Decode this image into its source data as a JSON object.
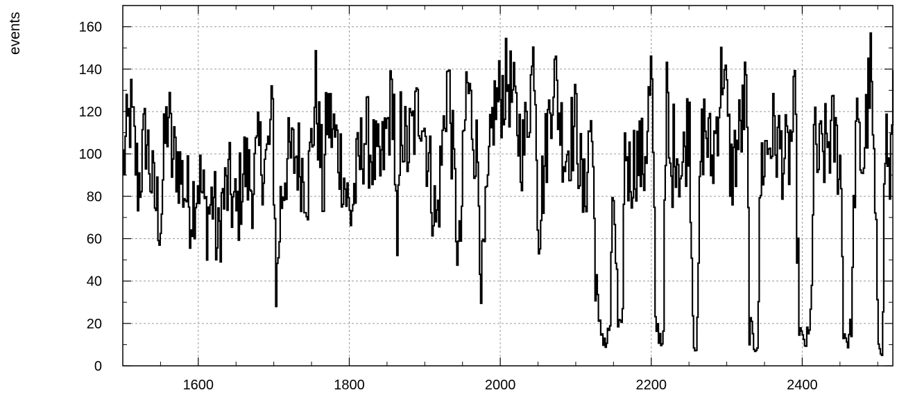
{
  "chart_data": {
    "type": "line",
    "title": "",
    "xlabel": "",
    "ylabel": "events",
    "xlim": [
      1500,
      2520
    ],
    "ylim": [
      0,
      170
    ],
    "x_ticks": [
      1600,
      1800,
      2000,
      2200,
      2400
    ],
    "y_ticks": [
      0,
      20,
      40,
      60,
      80,
      100,
      120,
      140,
      160
    ],
    "grid": true,
    "line_color": "#000000",
    "series": [
      {
        "x": [
          1500,
          1510,
          1520,
          1530,
          1540,
          1550,
          1555,
          1560,
          1565,
          1570,
          1580,
          1590,
          1600,
          1610,
          1620,
          1625,
          1630,
          1640,
          1650,
          1660,
          1670,
          1680,
          1690,
          1698,
          1703,
          1708,
          1715,
          1730,
          1745,
          1755,
          1765,
          1770,
          1790,
          1800,
          1820,
          1840,
          1858,
          1863,
          1868,
          1875,
          1895,
          1915,
          1930,
          1945,
          1955,
          1970,
          1975,
          1990,
          2010,
          2030,
          2045,
          2050,
          2070,
          2085,
          2100,
          2110,
          2120,
          2125,
          2130,
          2135,
          2140,
          2145,
          2150,
          2155,
          2160,
          2165,
          2170,
          2180,
          2190,
          2200,
          2205,
          2210,
          2215,
          2220,
          2225,
          2230,
          2240,
          2250,
          2255,
          2260,
          2265,
          2270,
          2280,
          2295,
          2305,
          2320,
          2325,
          2330,
          2335,
          2340,
          2345,
          2350,
          2360,
          2380,
          2390,
          2395,
          2400,
          2405,
          2410,
          2415,
          2420,
          2440,
          2450,
          2455,
          2460,
          2465,
          2470,
          2480,
          2490,
          2495,
          2500,
          2505,
          2510,
          2515,
          2520
        ],
        "values": [
          95,
          120,
          85,
          110,
          80,
          70,
          105,
          120,
          95,
          100,
          85,
          75,
          90,
          70,
          80,
          52,
          75,
          85,
          70,
          95,
          85,
          100,
          95,
          118,
          32,
          75,
          95,
          100,
          85,
          130,
          80,
          120,
          95,
          70,
          110,
          90,
          130,
          42,
          120,
          100,
          125,
          65,
          140,
          45,
          135,
          95,
          35,
          120,
          135,
          100,
          150,
          65,
          140,
          100,
          115,
          75,
          120,
          55,
          18,
          15,
          10,
          20,
          85,
          18,
          15,
          110,
          90,
          100,
          95,
          140,
          20,
          15,
          10,
          130,
          80,
          110,
          90,
          120,
          15,
          8,
          100,
          115,
          95,
          145,
          90,
          115,
          130,
          20,
          10,
          12,
          95,
          100,
          110,
          95,
          120,
          20,
          10,
          12,
          15,
          105,
          95,
          110,
          95,
          15,
          12,
          20,
          110,
          95,
          140,
          85,
          12,
          10,
          115,
          85,
          120
        ]
      }
    ]
  }
}
